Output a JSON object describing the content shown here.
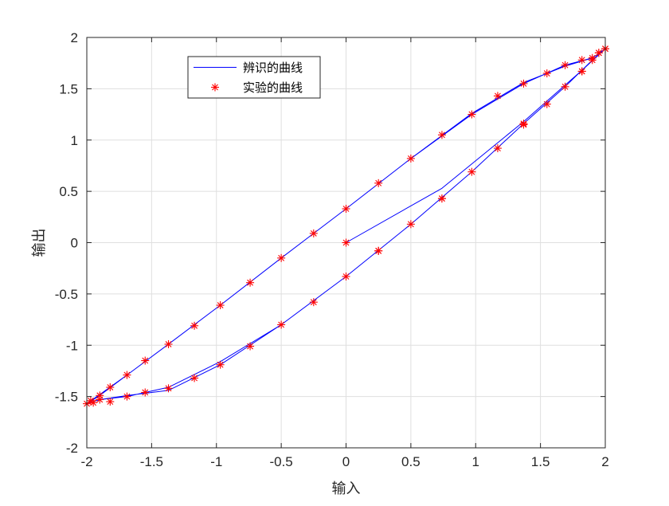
{
  "chart_data": {
    "type": "line",
    "title": "",
    "xlabel": "输入",
    "ylabel": "输出",
    "xlim": [
      -2,
      2
    ],
    "ylim": [
      -2,
      2
    ],
    "x_ticks": [
      "-2",
      "-1.5",
      "-1",
      "-0.5",
      "0",
      "0.5",
      "1",
      "1.5",
      "2"
    ],
    "y_ticks": [
      "-2",
      "-1.5",
      "-1",
      "-0.5",
      "0",
      "0.5",
      "1",
      "1.5",
      "2"
    ],
    "grid": true,
    "legend_position": "top-left",
    "series": [
      {
        "name": "辨识的曲线",
        "style": "line",
        "color": "#0000ff",
        "x": [
          0,
          0.74,
          1.37,
          1.82,
          2,
          1.9,
          1.69,
          1.37,
          0.97,
          0.5,
          0,
          -0.5,
          -0.97,
          -1.37,
          -1.69,
          -1.9,
          -2,
          -1.9,
          -1.69,
          -1.37,
          -0.97,
          -0.5,
          0,
          0.5,
          0.97,
          1.37,
          1.69,
          1.9,
          2,
          1.9,
          1.69,
          1.37,
          0.97,
          0.5,
          0,
          -0.5,
          -0.97,
          -1.37,
          -1.69,
          -1.9,
          -2,
          -1.9,
          -1.69,
          -1.37,
          -0.97,
          -0.5,
          0,
          0.5,
          0.97,
          1.37,
          1.69,
          1.9,
          2
        ],
        "y": [
          0,
          0.53,
          1.18,
          1.68,
          1.89,
          1.8,
          1.72,
          1.56,
          1.26,
          0.82,
          0.33,
          -0.15,
          -0.61,
          -0.99,
          -1.29,
          -1.48,
          -1.57,
          -1.53,
          -1.49,
          -1.44,
          -1.19,
          -0.8,
          -0.33,
          0.18,
          0.69,
          1.16,
          1.52,
          1.78,
          1.89,
          1.8,
          1.73,
          1.55,
          1.25,
          0.82,
          0.33,
          -0.15,
          -0.61,
          -0.99,
          -1.29,
          -1.49,
          -1.57,
          -1.53,
          -1.5,
          -1.41,
          -1.16,
          -0.8,
          -0.33,
          0.18,
          0.69,
          1.16,
          1.52,
          1.78,
          1.89
        ]
      },
      {
        "name": "实验的曲线",
        "style": "marker",
        "marker": "asterisk",
        "color": "#ff0000",
        "x": [
          0,
          0.25,
          0.74,
          1.37,
          1.82,
          1.95,
          2,
          1.9,
          1.82,
          1.69,
          1.55,
          1.37,
          1.17,
          0.97,
          0.74,
          0.5,
          0.25,
          0,
          -0.25,
          -0.5,
          -0.74,
          -0.97,
          -1.17,
          -1.37,
          -1.55,
          -1.69,
          -1.82,
          -1.9,
          -1.97,
          -2,
          -1.95,
          -1.9,
          -1.82,
          -1.69,
          -1.55,
          -1.37,
          -1.17,
          -0.97,
          -0.74,
          -0.5,
          -0.25,
          0,
          0.25,
          0.5,
          0.74,
          0.97,
          1.17,
          1.37,
          1.55,
          1.69,
          1.82,
          1.9,
          1.95,
          2
        ],
        "y": [
          0,
          -0.08,
          0.43,
          1.15,
          1.67,
          1.85,
          1.89,
          1.8,
          1.78,
          1.73,
          1.65,
          1.55,
          1.43,
          1.25,
          1.05,
          0.82,
          0.58,
          0.33,
          0.09,
          -0.15,
          -0.39,
          -0.61,
          -0.81,
          -0.99,
          -1.15,
          -1.29,
          -1.41,
          -1.49,
          -1.54,
          -1.57,
          -1.56,
          -1.53,
          -1.55,
          -1.5,
          -1.46,
          -1.42,
          -1.32,
          -1.19,
          -1.01,
          -0.8,
          -0.58,
          -0.33,
          -0.08,
          0.18,
          0.43,
          0.69,
          0.92,
          1.16,
          1.35,
          1.52,
          1.67,
          1.78,
          1.85,
          1.89
        ]
      }
    ]
  }
}
